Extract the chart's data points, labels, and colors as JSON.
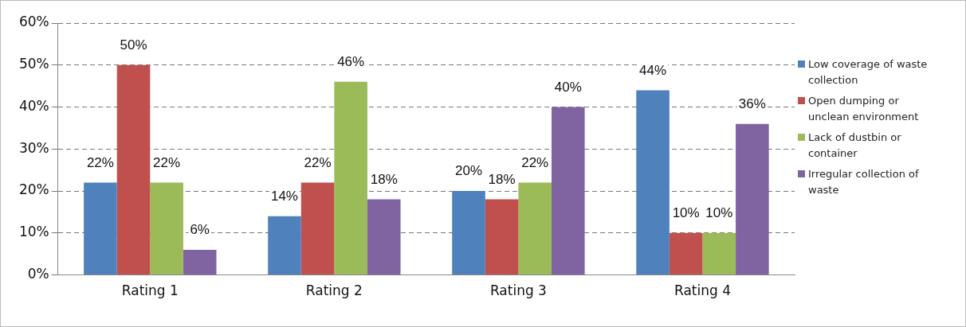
{
  "chart_data": {
    "type": "bar",
    "categories": [
      "Rating 1",
      "Rating 2",
      "Rating 3",
      "Rating 4"
    ],
    "series": [
      {
        "name": "Low coverage of waste collection",
        "color": "#4f81bd",
        "values": [
          22,
          14,
          20,
          44
        ],
        "value_labels": [
          "22%",
          "14%",
          "20%",
          "44%"
        ]
      },
      {
        "name": "Open dumping or unclean environment",
        "color": "#c0504d",
        "values": [
          50,
          22,
          18,
          10
        ],
        "value_labels": [
          "50%",
          "22%",
          "18%",
          "10%"
        ]
      },
      {
        "name": "Lack of dustbin or container",
        "color": "#9bbb59",
        "values": [
          22,
          46,
          22,
          10
        ],
        "value_labels": [
          "22%",
          "46%",
          "22%",
          "10%"
        ]
      },
      {
        "name": "Irregular collection of waste",
        "color": "#8064a2",
        "values": [
          6,
          18,
          40,
          36
        ],
        "value_labels": [
          "6%",
          "18%",
          "40%",
          "36%"
        ]
      }
    ],
    "ylim": [
      0,
      60
    ],
    "yticks": [
      {
        "value": 0,
        "label": "0%"
      },
      {
        "value": 10,
        "label": "10%"
      },
      {
        "value": 20,
        "label": "20%"
      },
      {
        "value": 30,
        "label": "30%"
      },
      {
        "value": 40,
        "label": "40%"
      },
      {
        "value": 50,
        "label": "50%"
      },
      {
        "value": 60,
        "label": "60%"
      }
    ],
    "grid": "y",
    "legend": "right"
  }
}
